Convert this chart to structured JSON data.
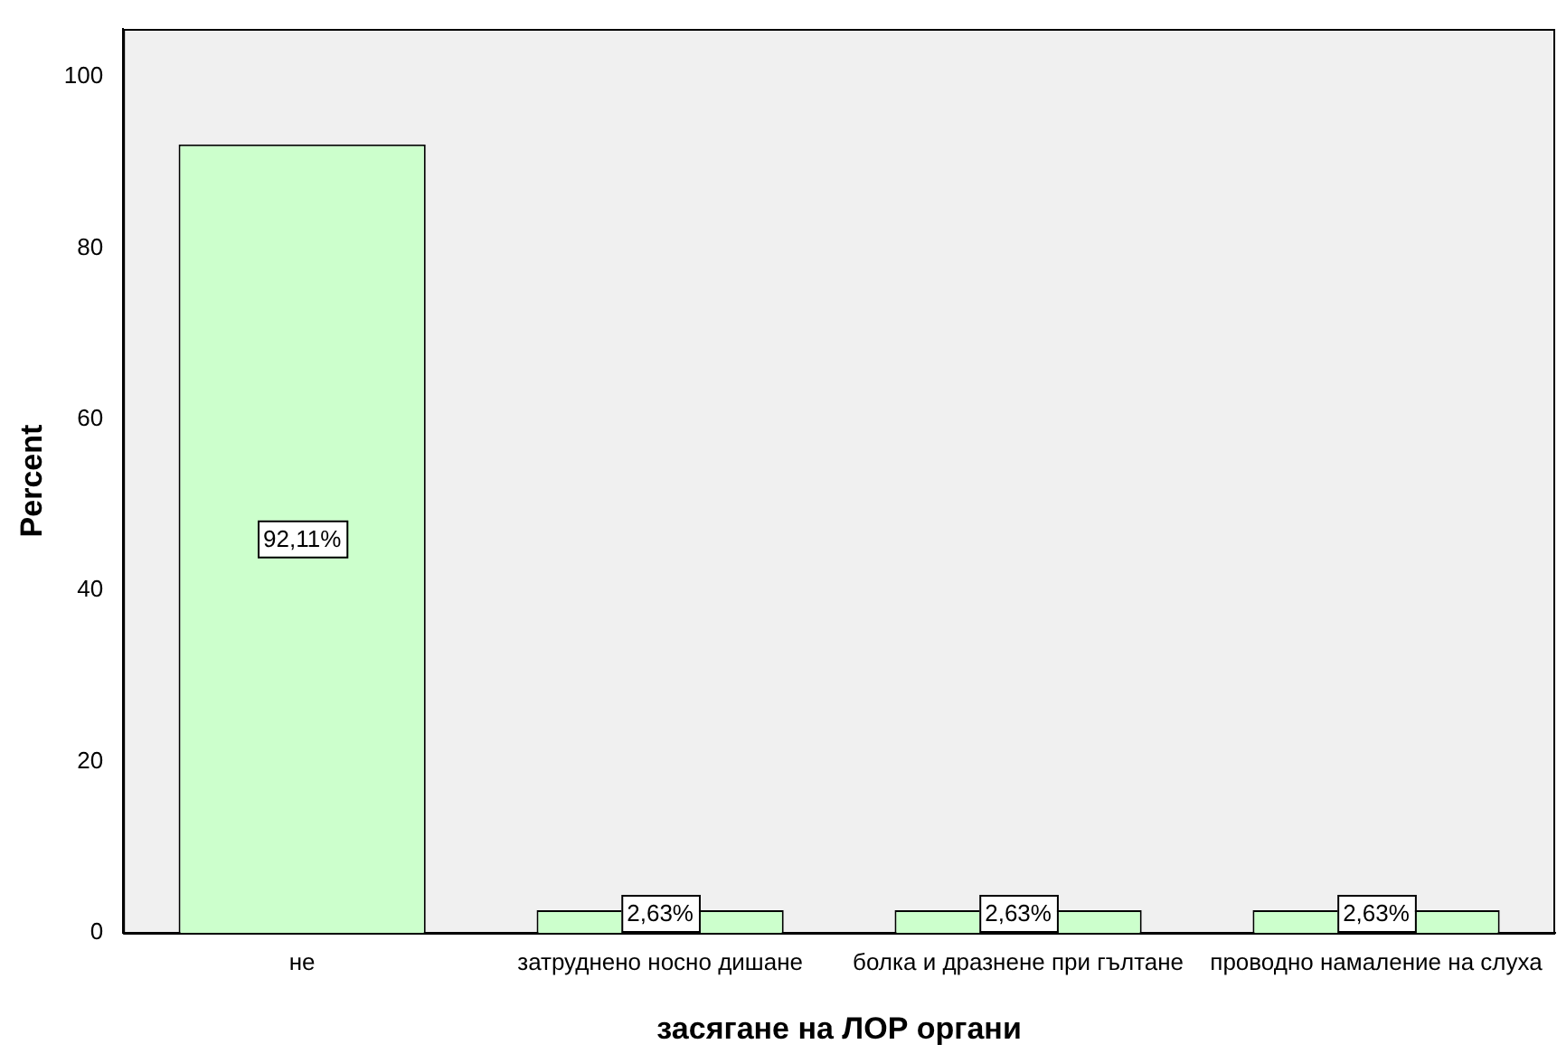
{
  "chart_data": {
    "type": "bar",
    "xlabel": "засягане на ЛОР органи",
    "ylabel": "Percent",
    "categories": [
      "не",
      "затруднено носно дишане",
      "болка и дразнене при гълтане",
      "проводно намаление на слуха"
    ],
    "values": [
      92.11,
      2.63,
      2.63,
      2.63
    ],
    "value_labels": [
      "92,11%",
      "2,63%",
      "2,63%",
      "2,63%"
    ],
    "color": "#ccffcc",
    "ylim": [
      0,
      105.6
    ],
    "yticks": [
      0,
      20,
      40,
      60,
      80,
      100
    ],
    "grid": false,
    "legend": false
  }
}
